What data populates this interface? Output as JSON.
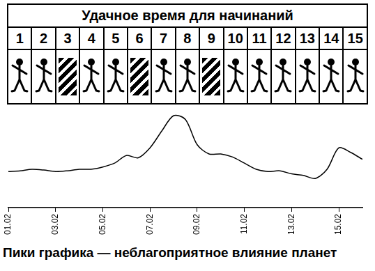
{
  "table": {
    "title": "Удачное время для начинаний",
    "days": [
      1,
      2,
      3,
      4,
      5,
      6,
      7,
      8,
      9,
      10,
      11,
      12,
      13,
      14,
      15
    ],
    "hatched_days": [
      3,
      6,
      9
    ]
  },
  "chart_data": {
    "type": "line",
    "annotation": "Пики графика — неблагоприятное влияние планет",
    "categories": [
      "01.02",
      null,
      null,
      null,
      "03.02",
      null,
      null,
      null,
      "05.02",
      null,
      null,
      null,
      "07.02",
      null,
      null,
      null,
      "09.02",
      null,
      null,
      null,
      "11.02",
      null,
      null,
      null,
      "13.02",
      null,
      null,
      null,
      "15.02",
      null,
      null
    ],
    "values": [
      47,
      48,
      50,
      49,
      47,
      48,
      50,
      50,
      53,
      58,
      68,
      65,
      78,
      100,
      120,
      115,
      82,
      70,
      70,
      66,
      58,
      50,
      47,
      48,
      44,
      42,
      38,
      50,
      78,
      72,
      63
    ],
    "color": "#000000",
    "ylim": [
      0,
      130
    ],
    "grid": false,
    "tick_labels": "x"
  }
}
